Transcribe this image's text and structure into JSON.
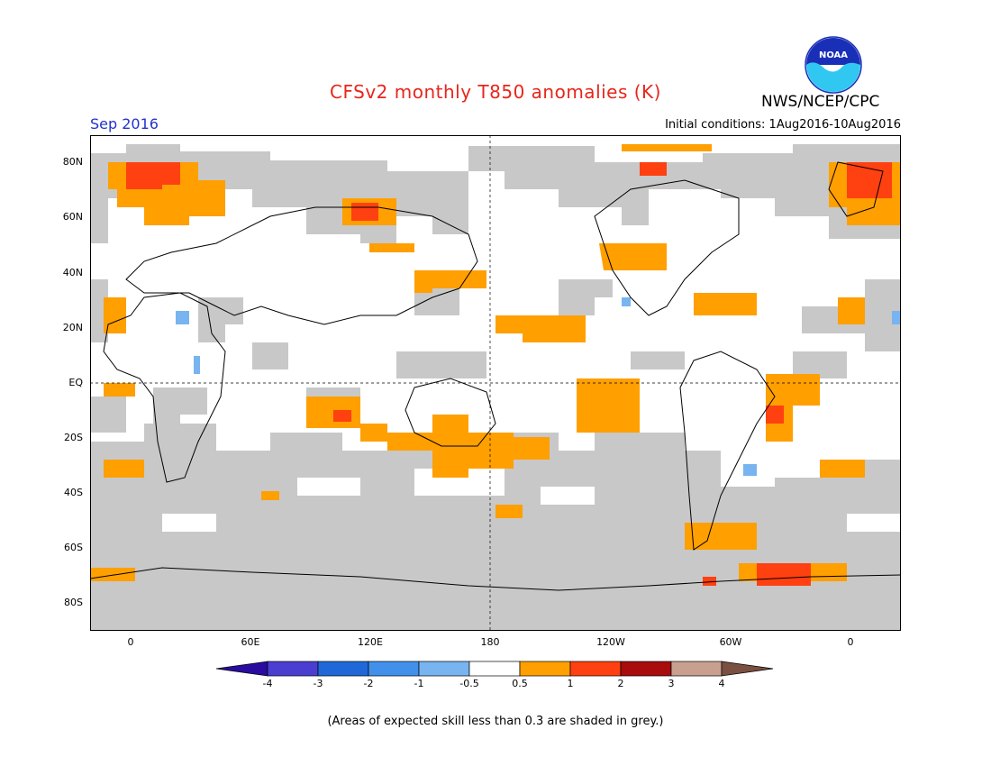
{
  "header": {
    "title": "CFSv2 monthly T850 anomalies (K)",
    "month_label": "Sep 2016",
    "initial_conditions": "Initial conditions: 1Aug2016-10Aug2016",
    "agency": "NWS/NCEP/CPC",
    "logo_text": "NOAA"
  },
  "map": {
    "lat_labels": [
      "80N",
      "60N",
      "40N",
      "20N",
      "EQ",
      "20S",
      "40S",
      "60S",
      "80S"
    ],
    "lon_labels": [
      "0",
      "60E",
      "120E",
      "180",
      "120W",
      "60W",
      "0"
    ],
    "colors": {
      "grey_mask": "#c8c8c8",
      "warm_05_1": "#ff9f00",
      "warm_1_2": "#ff4010",
      "cool_neg05_neg1": "#78b4ef",
      "neutral": "#ffffff"
    }
  },
  "colorbar": {
    "tick_labels": [
      "-4",
      "-3",
      "-2",
      "-1",
      "-0.5",
      "0.5",
      "1",
      "2",
      "3",
      "4"
    ],
    "colors": [
      "#2a0ca0",
      "#4a3ed0",
      "#2068d8",
      "#4191ec",
      "#78b4ef",
      "#ffffff",
      "#ff9f00",
      "#ff4010",
      "#a80c0c",
      "#c8a090",
      "#7a5040"
    ]
  },
  "footnote": "(Areas of expected skill less than 0.3 are shaded in grey.)"
}
